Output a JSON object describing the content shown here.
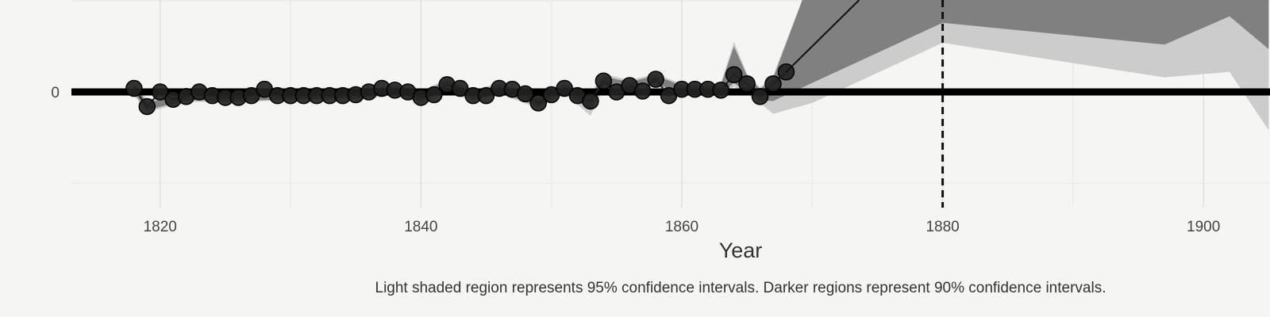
{
  "chart_data": {
    "type": "line",
    "xlabel": "Year",
    "caption": "Light shaded region represents 95% confidence intervals. Darker regions represent 90% confidence intervals.",
    "xlim": [
      1813.2,
      1905.1
    ],
    "xticks": [
      1820,
      1840,
      1860,
      1880,
      1900
    ],
    "minor_xticks": [
      1830,
      1850,
      1870,
      1890
    ],
    "ylim": [
      -1.27,
      1.01
    ],
    "yticks": [
      0
    ],
    "minor_yticks": [
      -1,
      1
    ],
    "grid": true,
    "hline": 0,
    "vline": 1880,
    "bands": [
      {
        "color": "#cccccc",
        "x": [
          1818,
          1819,
          1822,
          1826,
          1830,
          1835,
          1838,
          1840,
          1842,
          1844,
          1846,
          1849,
          1851,
          1853,
          1854,
          1856,
          1858,
          1860,
          1862,
          1863,
          1864,
          1865,
          1866,
          1867,
          1870,
          1880,
          1897,
          1902,
          1905
        ],
        "lower": [
          -0.04,
          -0.22,
          -0.11,
          -0.11,
          -0.09,
          -0.08,
          -0.04,
          -0.12,
          0.0,
          -0.1,
          -0.02,
          -0.18,
          -0.02,
          -0.26,
          0.04,
          0.0,
          0.06,
          -0.03,
          -0.03,
          -0.04,
          0.06,
          -0.02,
          -0.12,
          -0.24,
          -0.12,
          0.54,
          0.16,
          0.22,
          -0.42
        ],
        "upper": [
          0.1,
          -0.08,
          0.01,
          0.0,
          0.02,
          0.03,
          0.08,
          0.0,
          0.15,
          0.02,
          0.1,
          -0.05,
          0.1,
          -0.02,
          0.2,
          0.13,
          0.2,
          0.09,
          0.09,
          0.1,
          0.55,
          0.2,
          0.05,
          0.18,
          1.3,
          1.3,
          1.3,
          1.3,
          1.3
        ]
      },
      {
        "color": "#808080",
        "x": [
          1818,
          1819,
          1822,
          1826,
          1830,
          1835,
          1838,
          1840,
          1842,
          1844,
          1846,
          1849,
          1851,
          1853,
          1854,
          1856,
          1858,
          1860,
          1862,
          1863,
          1864,
          1865,
          1866,
          1867,
          1870,
          1880,
          1897,
          1902,
          1905
        ],
        "lower": [
          -0.01,
          -0.2,
          -0.09,
          -0.1,
          -0.08,
          -0.07,
          -0.02,
          -0.1,
          0.03,
          -0.08,
          0.0,
          -0.16,
          0.0,
          -0.2,
          0.07,
          0.03,
          0.09,
          -0.01,
          -0.01,
          -0.02,
          0.1,
          0.0,
          -0.09,
          -0.1,
          0.1,
          0.76,
          0.52,
          0.83,
          0.47
        ],
        "upper": [
          0.08,
          -0.12,
          -0.01,
          -0.02,
          0.0,
          0.01,
          0.06,
          -0.02,
          0.13,
          0.0,
          0.08,
          -0.07,
          0.08,
          -0.04,
          0.17,
          0.11,
          0.18,
          0.07,
          0.07,
          0.08,
          0.5,
          0.18,
          0.03,
          0.15,
          1.3,
          1.3,
          1.3,
          1.3,
          1.3
        ]
      }
    ],
    "series": [
      {
        "color": "#222222",
        "markers": true,
        "x": [
          1818,
          1819,
          1820,
          1821,
          1822,
          1823,
          1824,
          1825,
          1826,
          1827,
          1828,
          1829,
          1830,
          1831,
          1832,
          1833,
          1834,
          1835,
          1836,
          1837,
          1838,
          1839,
          1840,
          1841,
          1842,
          1843,
          1844,
          1845,
          1846,
          1847,
          1848,
          1849,
          1850,
          1851,
          1852,
          1853,
          1854,
          1855,
          1856,
          1857,
          1858,
          1859,
          1860,
          1861,
          1862,
          1863,
          1864,
          1865,
          1866,
          1867,
          1868
        ],
        "values": [
          0.04,
          -0.16,
          0,
          -0.08,
          -0.05,
          0,
          -0.04,
          -0.06,
          -0.06,
          -0.04,
          0.03,
          -0.04,
          -0.04,
          -0.04,
          -0.04,
          -0.04,
          -0.04,
          -0.03,
          0,
          0.04,
          0.02,
          0,
          -0.06,
          -0.03,
          0.08,
          0.04,
          -0.04,
          -0.04,
          0.04,
          0.03,
          -0.02,
          -0.12,
          -0.03,
          0.04,
          -0.04,
          -0.1,
          0.12,
          0,
          0.07,
          0.01,
          0.14,
          -0.04,
          0.03,
          0.03,
          0.03,
          0.02,
          0.19,
          0.09,
          -0.05,
          0.09,
          0.22
        ]
      },
      {
        "color": "#111111",
        "markers": false,
        "x": [
          1868,
          1873.6
        ],
        "values": [
          0.22,
          1.01
        ]
      }
    ]
  }
}
